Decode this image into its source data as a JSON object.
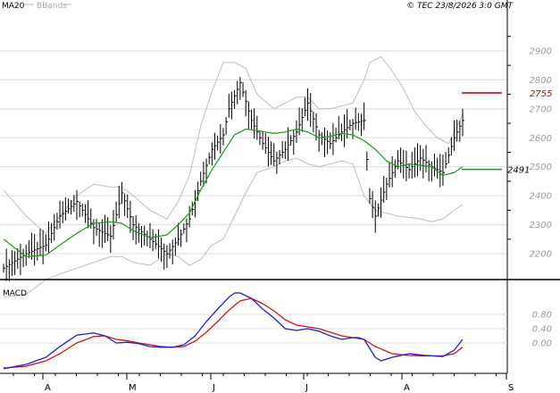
{
  "header": {
    "ma_label": "MA20",
    "bbands_label": "BBands",
    "copyright": "© TEC 23/8/2026 3:0 GMT"
  },
  "colors": {
    "ma": "#1a9a1a",
    "bbands": "#bdbdbd",
    "price": "#000000",
    "macd": "#1f1fd6",
    "signal": "#d01515",
    "resistance": "#c00000",
    "support": "#1a9a1a"
  },
  "chart_data": [
    {
      "type": "candlestick-bar",
      "y_axis_ticks": [
        2200,
        2300,
        2400,
        2500,
        2600,
        2700,
        2800,
        2900
      ],
      "y_axis_labels": [
        "2200",
        "2300",
        "2400",
        "2500",
        "2600",
        "2700",
        "2800",
        "2900"
      ],
      "ylim": [
        2120,
        3020
      ],
      "x_axis_labels": [
        "A",
        "M",
        "J",
        "J",
        "A",
        "S"
      ],
      "levels": [
        {
          "label": "2755",
          "value": 2755,
          "color": "#c00000"
        },
        {
          "label": "2491",
          "value": 2491,
          "color": "#1a9a1a"
        }
      ],
      "series": [
        {
          "name": "MA20",
          "type": "line"
        },
        {
          "name": "BBands",
          "type": "band"
        }
      ],
      "keypoints": {
        "close": [
          [
            0,
            2150
          ],
          [
            8,
            2200
          ],
          [
            15,
            2230
          ],
          [
            20,
            2330
          ],
          [
            26,
            2380
          ],
          [
            32,
            2290
          ],
          [
            38,
            2260
          ],
          [
            42,
            2410
          ],
          [
            46,
            2300
          ],
          [
            52,
            2250
          ],
          [
            58,
            2200
          ],
          [
            62,
            2250
          ],
          [
            66,
            2320
          ],
          [
            70,
            2450
          ],
          [
            74,
            2560
          ],
          [
            78,
            2610
          ],
          [
            80,
            2700
          ],
          [
            84,
            2790
          ],
          [
            88,
            2660
          ],
          [
            92,
            2580
          ],
          [
            96,
            2520
          ],
          [
            100,
            2560
          ],
          [
            104,
            2620
          ],
          [
            108,
            2720
          ],
          [
            112,
            2610
          ],
          [
            116,
            2580
          ],
          [
            120,
            2620
          ],
          [
            124,
            2650
          ],
          [
            128,
            2660
          ],
          [
            130,
            2390
          ],
          [
            132,
            2330
          ],
          [
            136,
            2440
          ],
          [
            140,
            2520
          ],
          [
            144,
            2490
          ],
          [
            148,
            2530
          ],
          [
            152,
            2500
          ],
          [
            156,
            2480
          ],
          [
            160,
            2600
          ],
          [
            163,
            2660
          ]
        ],
        "ma": [
          [
            0,
            2250
          ],
          [
            8,
            2190
          ],
          [
            15,
            2195
          ],
          [
            20,
            2230
          ],
          [
            26,
            2270
          ],
          [
            32,
            2305
          ],
          [
            38,
            2310
          ],
          [
            42,
            2305
          ],
          [
            46,
            2280
          ],
          [
            52,
            2255
          ],
          [
            58,
            2265
          ],
          [
            62,
            2300
          ],
          [
            66,
            2340
          ],
          [
            70,
            2420
          ],
          [
            74,
            2490
          ],
          [
            78,
            2550
          ],
          [
            82,
            2610
          ],
          [
            86,
            2630
          ],
          [
            90,
            2625
          ],
          [
            96,
            2615
          ],
          [
            100,
            2620
          ],
          [
            104,
            2630
          ],
          [
            108,
            2620
          ],
          [
            112,
            2600
          ],
          [
            116,
            2605
          ],
          [
            120,
            2615
          ],
          [
            124,
            2610
          ],
          [
            128,
            2590
          ],
          [
            132,
            2560
          ],
          [
            136,
            2520
          ],
          [
            140,
            2500
          ],
          [
            144,
            2510
          ],
          [
            148,
            2505
          ],
          [
            152,
            2500
          ],
          [
            156,
            2470
          ],
          [
            160,
            2480
          ],
          [
            163,
            2500
          ]
        ],
        "bb_upper": [
          [
            0,
            2420
          ],
          [
            8,
            2330
          ],
          [
            15,
            2270
          ],
          [
            20,
            2330
          ],
          [
            26,
            2400
          ],
          [
            32,
            2440
          ],
          [
            38,
            2430
          ],
          [
            42,
            2430
          ],
          [
            46,
            2400
          ],
          [
            52,
            2350
          ],
          [
            58,
            2320
          ],
          [
            62,
            2380
          ],
          [
            66,
            2470
          ],
          [
            70,
            2640
          ],
          [
            74,
            2760
          ],
          [
            78,
            2860
          ],
          [
            82,
            2860
          ],
          [
            86,
            2840
          ],
          [
            90,
            2750
          ],
          [
            96,
            2700
          ],
          [
            100,
            2720
          ],
          [
            104,
            2740
          ],
          [
            108,
            2740
          ],
          [
            112,
            2700
          ],
          [
            116,
            2700
          ],
          [
            120,
            2710
          ],
          [
            124,
            2720
          ],
          [
            128,
            2800
          ],
          [
            130,
            2860
          ],
          [
            134,
            2880
          ],
          [
            138,
            2830
          ],
          [
            142,
            2770
          ],
          [
            146,
            2690
          ],
          [
            150,
            2640
          ],
          [
            154,
            2600
          ],
          [
            158,
            2580
          ],
          [
            163,
            2680
          ]
        ],
        "bb_lower": [
          [
            0,
            2050
          ],
          [
            8,
            2060
          ],
          [
            15,
            2110
          ],
          [
            20,
            2130
          ],
          [
            26,
            2150
          ],
          [
            32,
            2170
          ],
          [
            38,
            2190
          ],
          [
            42,
            2190
          ],
          [
            46,
            2170
          ],
          [
            52,
            2160
          ],
          [
            58,
            2200
          ],
          [
            62,
            2190
          ],
          [
            66,
            2160
          ],
          [
            70,
            2180
          ],
          [
            74,
            2230
          ],
          [
            78,
            2250
          ],
          [
            82,
            2330
          ],
          [
            86,
            2410
          ],
          [
            90,
            2480
          ],
          [
            96,
            2500
          ],
          [
            100,
            2520
          ],
          [
            104,
            2530
          ],
          [
            108,
            2510
          ],
          [
            112,
            2500
          ],
          [
            116,
            2510
          ],
          [
            120,
            2520
          ],
          [
            124,
            2510
          ],
          [
            128,
            2400
          ],
          [
            132,
            2350
          ],
          [
            136,
            2340
          ],
          [
            140,
            2330
          ],
          [
            144,
            2325
          ],
          [
            148,
            2320
          ],
          [
            152,
            2310
          ],
          [
            156,
            2320
          ],
          [
            160,
            2350
          ],
          [
            163,
            2370
          ]
        ]
      }
    },
    {
      "type": "line",
      "title": "MACD",
      "y_axis_ticks": [
        0,
        40,
        80
      ],
      "y_axis_labels": [
        "0.00",
        "0.40",
        "0.80"
      ],
      "ylim": [
        -80,
        160
      ],
      "series": [
        {
          "key": "macd",
          "points": [
            [
              0,
              -72
            ],
            [
              8,
              -60
            ],
            [
              15,
              -40
            ],
            [
              20,
              -10
            ],
            [
              26,
              22
            ],
            [
              32,
              28
            ],
            [
              36,
              20
            ],
            [
              40,
              0
            ],
            [
              44,
              2
            ],
            [
              48,
              -2
            ],
            [
              52,
              -10
            ],
            [
              56,
              -12
            ],
            [
              60,
              -12
            ],
            [
              64,
              -5
            ],
            [
              68,
              20
            ],
            [
              72,
              60
            ],
            [
              76,
              95
            ],
            [
              80,
              128
            ],
            [
              82,
              140
            ],
            [
              84,
              140
            ],
            [
              88,
              125
            ],
            [
              92,
              95
            ],
            [
              96,
              70
            ],
            [
              100,
              40
            ],
            [
              104,
              35
            ],
            [
              108,
              40
            ],
            [
              112,
              33
            ],
            [
              116,
              20
            ],
            [
              120,
              10
            ],
            [
              124,
              15
            ],
            [
              126,
              15
            ],
            [
              128,
              10
            ],
            [
              132,
              -40
            ],
            [
              134,
              -50
            ],
            [
              138,
              -40
            ],
            [
              144,
              -30
            ],
            [
              150,
              -35
            ],
            [
              156,
              -38
            ],
            [
              160,
              -20
            ],
            [
              163,
              10
            ]
          ]
        },
        {
          "key": "signal",
          "points": [
            [
              0,
              -70
            ],
            [
              8,
              -65
            ],
            [
              15,
              -50
            ],
            [
              20,
              -30
            ],
            [
              26,
              0
            ],
            [
              32,
              18
            ],
            [
              36,
              20
            ],
            [
              40,
              10
            ],
            [
              44,
              6
            ],
            [
              48,
              0
            ],
            [
              52,
              -5
            ],
            [
              56,
              -10
            ],
            [
              60,
              -12
            ],
            [
              64,
              -10
            ],
            [
              68,
              5
            ],
            [
              72,
              30
            ],
            [
              76,
              60
            ],
            [
              80,
              92
            ],
            [
              84,
              118
            ],
            [
              88,
              125
            ],
            [
              92,
              110
            ],
            [
              96,
              90
            ],
            [
              100,
              65
            ],
            [
              104,
              50
            ],
            [
              108,
              45
            ],
            [
              112,
              40
            ],
            [
              116,
              30
            ],
            [
              120,
              20
            ],
            [
              124,
              15
            ],
            [
              128,
              10
            ],
            [
              132,
              -10
            ],
            [
              138,
              -30
            ],
            [
              144,
              -35
            ],
            [
              150,
              -36
            ],
            [
              156,
              -36
            ],
            [
              160,
              -30
            ],
            [
              163,
              -12
            ]
          ]
        }
      ]
    }
  ]
}
